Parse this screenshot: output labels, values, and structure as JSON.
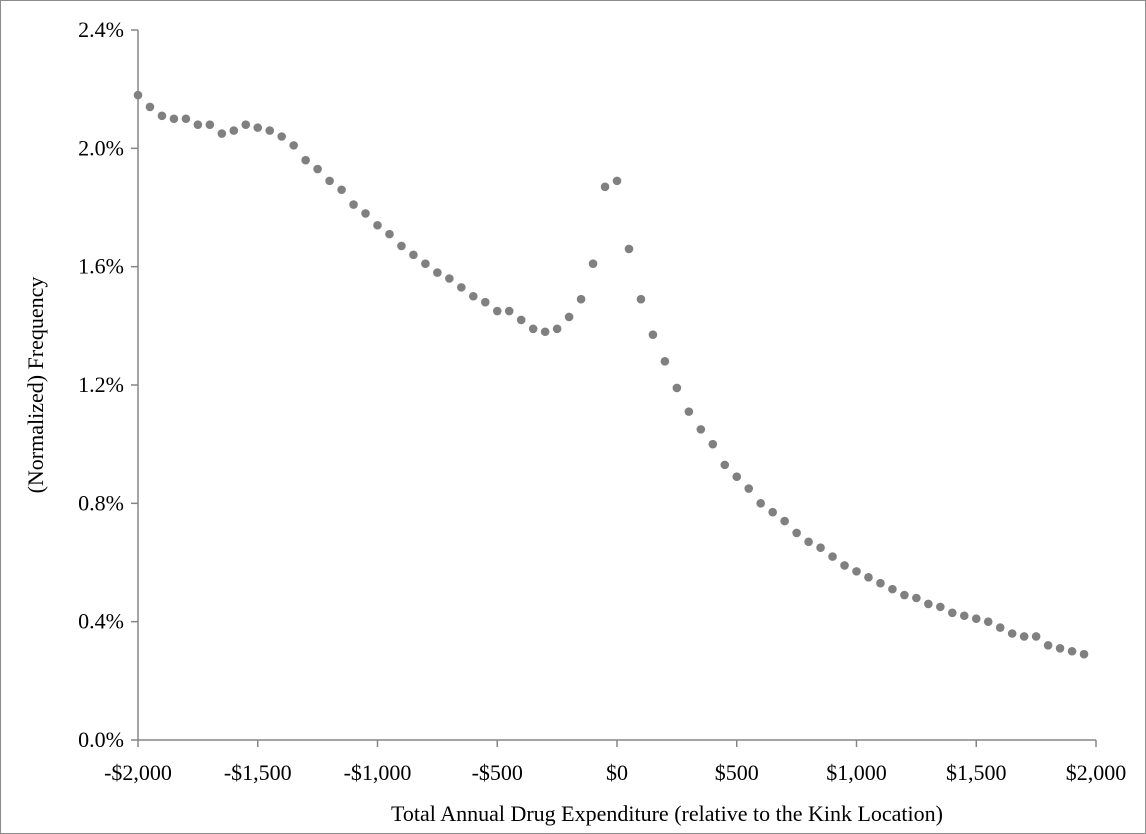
{
  "chart_data": {
    "type": "scatter",
    "title": "",
    "xlabel": "Total Annual Drug Expenditure (relative to the Kink Location)",
    "ylabel": "(Normalized)  Frequency",
    "xlim": [
      -2000,
      2000
    ],
    "ylim": [
      0.0,
      2.4
    ],
    "x_ticks": [
      -2000,
      -1500,
      -1000,
      -500,
      0,
      500,
      1000,
      1500,
      2000
    ],
    "x_tick_labels": [
      "-$2,000",
      "-$1,500",
      "-$1,000",
      "-$500",
      "$0",
      "$500",
      "$1,000",
      "$1,500",
      "$2,000"
    ],
    "y_ticks": [
      0.0,
      0.4,
      0.8,
      1.2,
      1.6,
      2.0,
      2.4
    ],
    "y_tick_labels": [
      "0.0%",
      "0.4%",
      "0.8%",
      "1.2%",
      "1.6%",
      "2.0%",
      "2.4%"
    ],
    "grid": false,
    "legend": "none",
    "marker_color": "#808080",
    "series": [
      {
        "x": [
          -2000,
          -1950,
          -1900,
          -1850,
          -1800,
          -1750,
          -1700,
          -1650,
          -1600,
          -1550,
          -1500,
          -1450,
          -1400,
          -1350,
          -1300,
          -1250,
          -1200,
          -1150,
          -1100,
          -1050,
          -1000,
          -950,
          -900,
          -850,
          -800,
          -750,
          -700,
          -650,
          -600,
          -550,
          -500,
          -450,
          -400,
          -350,
          -300,
          -250,
          -200,
          -150,
          -100,
          -50,
          0,
          50,
          100,
          150,
          200,
          250,
          300,
          350,
          400,
          450,
          500,
          550,
          600,
          650,
          700,
          750,
          800,
          850,
          900,
          950,
          1000,
          1050,
          1100,
          1150,
          1200,
          1250,
          1300,
          1350,
          1400,
          1450,
          1500,
          1550,
          1600,
          1650,
          1700,
          1750,
          1800,
          1850,
          1900,
          1950
        ],
        "values": [
          2.18,
          2.14,
          2.11,
          2.1,
          2.1,
          2.08,
          2.08,
          2.05,
          2.06,
          2.08,
          2.07,
          2.06,
          2.04,
          2.01,
          1.96,
          1.93,
          1.89,
          1.86,
          1.81,
          1.78,
          1.74,
          1.71,
          1.67,
          1.64,
          1.61,
          1.58,
          1.56,
          1.53,
          1.5,
          1.48,
          1.45,
          1.45,
          1.42,
          1.39,
          1.38,
          1.39,
          1.43,
          1.49,
          1.61,
          1.87,
          1.89,
          1.66,
          1.49,
          1.37,
          1.28,
          1.19,
          1.11,
          1.05,
          1.0,
          0.93,
          0.89,
          0.85,
          0.8,
          0.77,
          0.74,
          0.7,
          0.67,
          0.65,
          0.62,
          0.59,
          0.57,
          0.55,
          0.53,
          0.51,
          0.49,
          0.48,
          0.46,
          0.45,
          0.43,
          0.42,
          0.41,
          0.4,
          0.38,
          0.36,
          0.35,
          0.35,
          0.32,
          0.31,
          0.3,
          0.29
        ]
      }
    ]
  }
}
